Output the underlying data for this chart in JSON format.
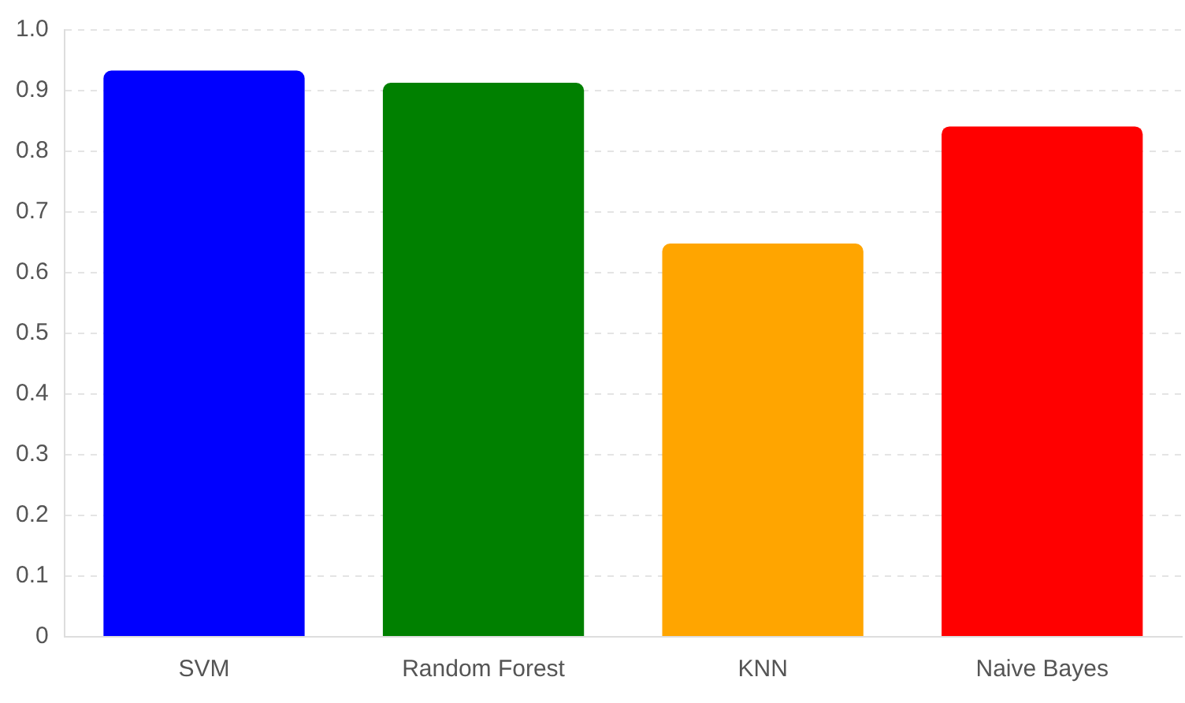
{
  "chart_data": {
    "type": "bar",
    "categories": [
      "SVM",
      "Random Forest",
      "KNN",
      "Naive Bayes"
    ],
    "values": [
      0.933,
      0.913,
      0.648,
      0.841
    ],
    "colors": [
      "#0000ff",
      "#008000",
      "#ffa500",
      "#ff0000"
    ],
    "ylim": [
      0,
      1
    ],
    "yticks": [
      0,
      0.1,
      0.2,
      0.3,
      0.4,
      0.5,
      0.6,
      0.7,
      0.8,
      0.9,
      {
        "value": 1,
        "label": "1.0"
      }
    ],
    "grid": "y",
    "legend": false
  }
}
